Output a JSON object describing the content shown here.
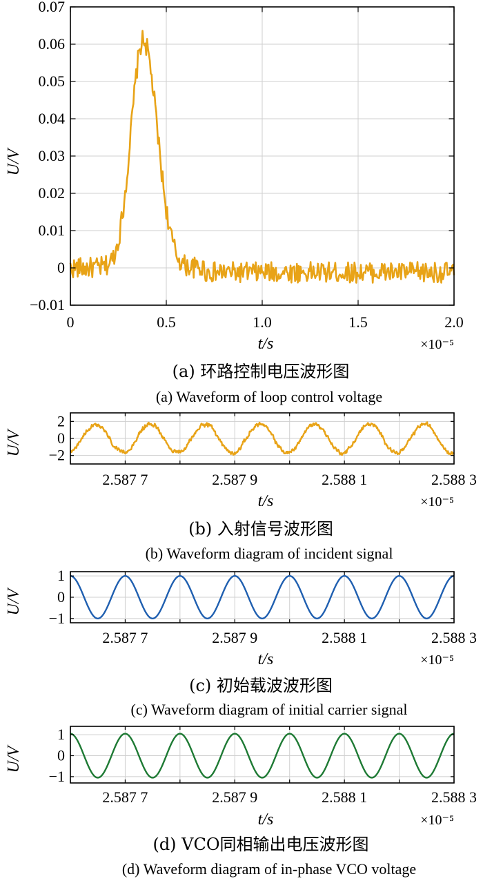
{
  "chart_data": [
    {
      "type": "line",
      "ylabel": "U/V",
      "xlabel": "t/s",
      "x_multiplier": "×10⁻⁵",
      "xlim": [
        0,
        2.0
      ],
      "ylim": [
        -0.01,
        0.07
      ],
      "x_ticks": [
        0,
        0.5,
        1.0,
        1.5,
        2.0
      ],
      "x_tick_labels": [
        "0",
        "0.5",
        "1.0",
        "1.5",
        "2.0"
      ],
      "y_ticks": [
        -0.01,
        0,
        0.01,
        0.02,
        0.03,
        0.04,
        0.05,
        0.06,
        0.07
      ],
      "y_tick_labels": [
        "−0.01",
        "0",
        "0.01",
        "0.02",
        "0.03",
        "0.04",
        "0.05",
        "0.06",
        "0.07"
      ],
      "grid": true,
      "color": "#e8a317",
      "peak": {
        "x": 0.38,
        "y": 0.061,
        "width": 0.09
      },
      "noise_amplitude": 0.0028,
      "caption_cn": "(a) 环路控制电压波形图",
      "caption_en": "(a) Waveform of loop control voltage"
    },
    {
      "type": "line",
      "ylabel": "U/V",
      "xlabel": "t/s",
      "x_multiplier": "×10⁻⁵",
      "xlim": [
        2.5876,
        2.5883
      ],
      "ylim": [
        -3,
        3
      ],
      "x_ticks": [
        2.5876,
        2.5877,
        2.5878,
        2.5879,
        2.588,
        2.5881,
        2.5882,
        2.5883
      ],
      "x_tick_labels": [
        "",
        "2.587 7",
        "",
        "2.587 9",
        "",
        "2.588 1",
        "",
        "2.588 3"
      ],
      "y_ticks": [
        -2,
        0,
        2
      ],
      "y_tick_labels": [
        "−2",
        "0",
        "2"
      ],
      "grid": true,
      "color": "#e8a317",
      "amplitude": 1.7,
      "period": 0.0001,
      "noise_amplitude": 0.35,
      "caption_cn": "(b) 入射信号波形图",
      "caption_en": "(b) Waveform diagram of incident signal"
    },
    {
      "type": "line",
      "ylabel": "U/V",
      "xlabel": "t/s",
      "x_multiplier": "×10⁻⁵",
      "xlim": [
        2.5876,
        2.5883
      ],
      "ylim": [
        -1.2,
        1.2
      ],
      "x_ticks": [
        2.5876,
        2.5877,
        2.5878,
        2.5879,
        2.588,
        2.5881,
        2.5882,
        2.5883
      ],
      "x_tick_labels": [
        "",
        "2.587 7",
        "",
        "2.587 9",
        "",
        "2.588 1",
        "",
        "2.588 3"
      ],
      "y_ticks": [
        -1,
        0,
        1
      ],
      "y_tick_labels": [
        "−1",
        "0",
        "1"
      ],
      "grid": true,
      "color": "#1f5fb0",
      "amplitude": 1.0,
      "period": 0.0001,
      "caption_cn": "(c) 初始载波波形图",
      "caption_en": "(c) Waveform diagram of initial carrier signal"
    },
    {
      "type": "line",
      "ylabel": "U/V",
      "xlabel": "t/s",
      "x_multiplier": "×10⁻⁵",
      "xlim": [
        2.5876,
        2.5883
      ],
      "ylim": [
        -1.3,
        1.4
      ],
      "x_ticks": [
        2.5876,
        2.5877,
        2.5878,
        2.5879,
        2.588,
        2.5881,
        2.5882,
        2.5883
      ],
      "x_tick_labels": [
        "",
        "2.587 7",
        "",
        "2.587 9",
        "",
        "2.588 1",
        "",
        "2.588 3"
      ],
      "y_ticks": [
        -1,
        0,
        1
      ],
      "y_tick_labels": [
        "−1",
        "0",
        "1"
      ],
      "grid": true,
      "color": "#1e7a34",
      "amplitude": 1.05,
      "period": 0.0001,
      "caption_cn": "(d) VCO同相输出电压波形图",
      "caption_en": "(d) Waveform diagram of in-phase VCO voltage"
    }
  ]
}
